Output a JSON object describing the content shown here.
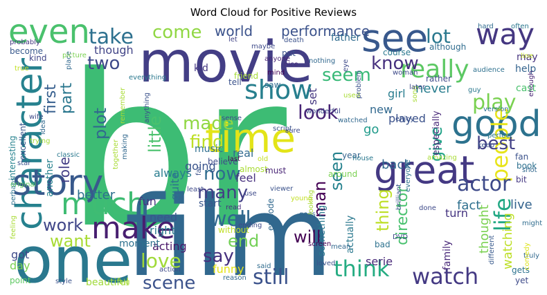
{
  "chart_data": {
    "type": "wordcloud",
    "title": "Word Cloud for Positive Reviews",
    "words": [
      {
        "text": "br",
        "color": "#3dbc74"
      },
      {
        "text": "film",
        "color": "#31688e"
      },
      {
        "text": "movie",
        "color": "#433e85"
      },
      {
        "text": "one",
        "color": "#2a788e"
      },
      {
        "text": "time",
        "color": "#e3e418"
      },
      {
        "text": "character",
        "color": "#26818e"
      },
      {
        "text": "great",
        "color": "#443983"
      },
      {
        "text": "see",
        "color": "#38588c"
      },
      {
        "text": "story",
        "color": "#38598c"
      },
      {
        "text": "even",
        "color": "#4ac16d"
      },
      {
        "text": "good",
        "color": "#2c728e"
      },
      {
        "text": "make",
        "color": "#481f70"
      },
      {
        "text": "much",
        "color": "#3fbc73"
      },
      {
        "text": "way",
        "color": "#453781"
      },
      {
        "text": "show",
        "color": "#277f8e"
      },
      {
        "text": "really",
        "color": "#5cc863"
      },
      {
        "text": "take",
        "color": "#2d708e"
      },
      {
        "text": "well",
        "color": "#31688e"
      },
      {
        "text": "think",
        "color": "#25ac82"
      },
      {
        "text": "watch",
        "color": "#443983"
      },
      {
        "text": "still",
        "color": "#3b528b"
      },
      {
        "text": "life",
        "color": "#22a884"
      },
      {
        "text": "people",
        "color": "#e7e419"
      },
      {
        "text": "actor",
        "color": "#3e4a89"
      },
      {
        "text": "play",
        "color": "#7ad151"
      },
      {
        "text": "best",
        "color": "#424086"
      },
      {
        "text": "know",
        "color": "#46307e"
      },
      {
        "text": "lot",
        "color": "#2a788e"
      },
      {
        "text": "look",
        "color": "#482475"
      },
      {
        "text": "seem",
        "color": "#38b977"
      },
      {
        "text": "made",
        "color": "#90d743"
      },
      {
        "text": "find",
        "color": "#bddf26"
      },
      {
        "text": "now",
        "color": "#2f6c8e"
      },
      {
        "text": "love",
        "color": "#a0da39"
      },
      {
        "text": "say",
        "color": "#46307e"
      },
      {
        "text": "end",
        "color": "#73d056"
      },
      {
        "text": "scene",
        "color": "#3b528b"
      },
      {
        "text": "want",
        "color": "#a8db34"
      },
      {
        "text": "work",
        "color": "#404688"
      },
      {
        "text": "plot",
        "color": "#31688e"
      },
      {
        "text": "two",
        "color": "#3e4989"
      },
      {
        "text": "little",
        "color": "#4ac16d"
      },
      {
        "text": "come",
        "color": "#90d743"
      },
      {
        "text": "first",
        "color": "#355e8d"
      },
      {
        "text": "part",
        "color": "#2a778e"
      },
      {
        "text": "give",
        "color": "#1fa287"
      },
      {
        "text": "thing",
        "color": "#bddf26"
      },
      {
        "text": "seen",
        "color": "#26828e"
      },
      {
        "text": "man",
        "color": "#440154"
      },
      {
        "text": "many",
        "color": "#423f85"
      },
      {
        "text": "will",
        "color": "#440154"
      },
      {
        "text": "role",
        "color": "#433e85"
      },
      {
        "text": "director",
        "color": "#48c16e"
      },
      {
        "text": "world",
        "color": "#3b528b"
      },
      {
        "text": "performance",
        "color": "#3b528b"
      },
      {
        "text": "though",
        "color": "#414487"
      },
      {
        "text": "never",
        "color": "#287d8e"
      },
      {
        "text": "back",
        "color": "#31688e"
      },
      {
        "text": "fact",
        "color": "#2e6f8e"
      },
      {
        "text": "live",
        "color": "#33638d"
      },
      {
        "text": "thought",
        "color": "#7ad151"
      },
      {
        "text": "funny",
        "color": "#e5e419"
      },
      {
        "text": "watching",
        "color": "#bddf26"
      },
      {
        "text": "family",
        "color": "#482878"
      },
      {
        "text": "turn",
        "color": "#453581"
      },
      {
        "text": "acting",
        "color": "#481668"
      },
      {
        "text": "better",
        "color": "#2d708e"
      },
      {
        "text": "day",
        "color": "#7ad151"
      },
      {
        "text": "got",
        "color": "#3e4a89"
      },
      {
        "text": "need",
        "color": "#39568c"
      },
      {
        "text": "right",
        "color": "#2a788e"
      },
      {
        "text": "quite",
        "color": "#2c718e"
      },
      {
        "text": "fun",
        "color": "#46337f"
      },
      {
        "text": "feel",
        "color": "#46307e"
      },
      {
        "text": "real",
        "color": "#306a8e"
      },
      {
        "text": "going",
        "color": "#3a548c"
      },
      {
        "text": "music",
        "color": "#2e6e8e"
      },
      {
        "text": "set",
        "color": "#453781"
      },
      {
        "text": "new",
        "color": "#31688e"
      },
      {
        "text": "go",
        "color": "#1f9a8a"
      },
      {
        "text": "played",
        "color": "#3b528b"
      },
      {
        "text": "girl",
        "color": "#287c8e"
      },
      {
        "text": "kid",
        "color": "#453882"
      },
      {
        "text": "father",
        "color": "#2f6b8e"
      },
      {
        "text": "actually",
        "color": "#2a788e"
      },
      {
        "text": "something",
        "color": "#2a788e"
      },
      {
        "text": "serie",
        "color": "#482878"
      },
      {
        "text": "start",
        "color": "#39568c"
      },
      {
        "text": "moment",
        "color": "#2d708e"
      },
      {
        "text": "beautiful",
        "color": "#a0da39"
      },
      {
        "text": "point",
        "color": "#5ec962"
      },
      {
        "text": "yet",
        "color": "#3e4a89"
      },
      {
        "text": "gets",
        "color": "#2c728e"
      },
      {
        "text": "always",
        "color": "#287c8e"
      },
      {
        "text": "another",
        "color": "#26828e"
      },
      {
        "text": "help",
        "color": "#33638d"
      },
      {
        "text": "cast",
        "color": "#4ac16d"
      },
      {
        "text": "may",
        "color": "#46327e"
      },
      {
        "text": "fan",
        "color": "#3b528b"
      },
      {
        "text": "book",
        "color": "#2d708e"
      },
      {
        "text": "bit",
        "color": "#453882"
      },
      {
        "text": "especially",
        "color": "#482878"
      },
      {
        "text": "excellent",
        "color": "#39568c"
      },
      {
        "text": "interesting",
        "color": "#26828e"
      },
      {
        "text": "become",
        "color": "#38598c"
      },
      {
        "text": "kind",
        "color": "#404688"
      },
      {
        "text": "course",
        "color": "#2a788e"
      },
      {
        "text": "although",
        "color": "#2f6c8e"
      },
      {
        "text": "put",
        "color": "#3b528b"
      },
      {
        "text": "rather",
        "color": "#3e4a89"
      },
      {
        "text": "tell",
        "color": "#3b528b"
      },
      {
        "text": "saw",
        "color": "#2f6b8e"
      },
      {
        "text": "friend",
        "color": "#a5db36"
      },
      {
        "text": "believe",
        "color": "#3e4a89"
      },
      {
        "text": "episode",
        "color": "#31688e"
      },
      {
        "text": "around",
        "color": "#7ad151"
      },
      {
        "text": "year",
        "color": "#33638d"
      },
      {
        "text": "bad",
        "color": "#2c718e"
      },
      {
        "text": "without",
        "color": "#c0df25"
      },
      {
        "text": "almost",
        "color": "#a8db34"
      },
      {
        "text": "must",
        "color": "#482475"
      },
      {
        "text": "probably",
        "color": "#453882"
      },
      {
        "text": "death",
        "color": "#3b528b"
      },
      {
        "text": "let",
        "color": "#414487"
      },
      {
        "text": "maybe",
        "color": "#3e4a89"
      },
      {
        "text": "anyone",
        "color": "#482575"
      },
      {
        "text": "nice",
        "color": "#46307e"
      },
      {
        "text": "nothing",
        "color": "#31688e"
      },
      {
        "text": "mind",
        "color": "#440154"
      },
      {
        "text": "hard",
        "color": "#2f6b8e"
      },
      {
        "text": "often",
        "color": "#2a778e"
      },
      {
        "text": "enough",
        "color": "#482475"
      },
      {
        "text": "line",
        "color": "#c2df23"
      },
      {
        "text": "audience",
        "color": "#2d708e"
      },
      {
        "text": "woman",
        "color": "#3e4a89"
      },
      {
        "text": "guy",
        "color": "#2a788e"
      },
      {
        "text": "version",
        "color": "#2d708e"
      },
      {
        "text": "perfect",
        "color": "#2a788e"
      },
      {
        "text": "keep",
        "color": "#3b528b"
      },
      {
        "text": "shot",
        "color": "#31688e"
      },
      {
        "text": "might",
        "color": "#2f6c8e"
      },
      {
        "text": "truly",
        "color": "#31688e"
      },
      {
        "text": "comedy",
        "color": "#dde318"
      },
      {
        "text": "different",
        "color": "#38598c"
      },
      {
        "text": "brilliant",
        "color": "#3b528b"
      },
      {
        "text": "everyone",
        "color": "#2c718e"
      },
      {
        "text": "done",
        "color": "#3e4a89"
      },
      {
        "text": "young",
        "color": "#c2df23"
      },
      {
        "text": "viewer",
        "color": "#3b528b"
      },
      {
        "text": "use",
        "color": "#3e4a89"
      },
      {
        "text": "least",
        "color": "#3e4a89"
      },
      {
        "text": "read",
        "color": "#46307e"
      },
      {
        "text": "goes",
        "color": "#31688e"
      },
      {
        "text": "looking",
        "color": "#a8db34"
      },
      {
        "text": "ending",
        "color": "#3e4a89"
      },
      {
        "text": "screen",
        "color": "#440154"
      },
      {
        "text": "mean",
        "color": "#31688e"
      },
      {
        "text": "DVD",
        "color": "#3e4a89"
      },
      {
        "text": "loved",
        "color": "#3b528b"
      },
      {
        "text": "said",
        "color": "#2f6b8e"
      },
      {
        "text": "reason",
        "color": "#31688e"
      },
      {
        "text": "action",
        "color": "#3e4a89"
      },
      {
        "text": "big",
        "color": "#a8db34"
      },
      {
        "text": "style",
        "color": "#3b528b"
      },
      {
        "text": "feeling",
        "color": "#a8db34"
      },
      {
        "text": "perhaps",
        "color": "#2c718e"
      },
      {
        "text": "original",
        "color": "#5ec962"
      },
      {
        "text": "star",
        "color": "#3b528b"
      },
      {
        "text": "classic",
        "color": "#2a788e"
      },
      {
        "text": "far",
        "color": "#3b528b"
      },
      {
        "text": "together",
        "color": "#a8db34"
      },
      {
        "text": "making",
        "color": "#31688e"
      },
      {
        "text": "trying",
        "color": "#a5db36"
      },
      {
        "text": "wife",
        "color": "#3e4a89"
      },
      {
        "text": "idea",
        "color": "#31688e"
      },
      {
        "text": "remember",
        "color": "#a8db34"
      },
      {
        "text": "anything",
        "color": "#3b528b"
      },
      {
        "text": "everything",
        "color": "#2a788e"
      },
      {
        "text": "place",
        "color": "#31688e"
      },
      {
        "text": "picture",
        "color": "#7ad151"
      },
      {
        "text": "true",
        "color": "#c2df23"
      },
      {
        "text": "sense",
        "color": "#3e4a89"
      },
      {
        "text": "script",
        "color": "#3b528b"
      },
      {
        "text": "last",
        "color": "#440154"
      },
      {
        "text": "old",
        "color": "#c2df23"
      },
      {
        "text": "sure",
        "color": "#3e4a89"
      },
      {
        "text": "wonderful",
        "color": "#3e4a89"
      },
      {
        "text": "watched",
        "color": "#31688e"
      },
      {
        "text": "used",
        "color": "#a8db34"
      },
      {
        "text": "problem",
        "color": "#3b528b"
      },
      {
        "text": "song",
        "color": "#a8db34"
      },
      {
        "text": "enjoy",
        "color": "#3b528b"
      },
      {
        "text": "eye",
        "color": "#3e4a89"
      },
      {
        "text": "later",
        "color": "#3e4a89"
      },
      {
        "text": "amazing",
        "color": "#a8db34"
      },
      {
        "text": "house",
        "color": "#2a788e"
      },
      {
        "text": "American",
        "color": "#a8db34"
      },
      {
        "text": "long",
        "color": "#31688e"
      }
    ]
  }
}
